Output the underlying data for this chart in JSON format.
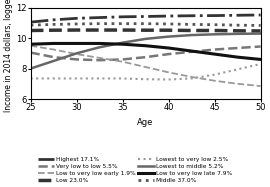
{
  "title": "",
  "xlabel": "Age",
  "ylabel": "Income in 2014 dollars, logged",
  "xlim": [
    25,
    50
  ],
  "ylim": [
    6,
    12
  ],
  "xticks": [
    25,
    30,
    35,
    40,
    45,
    50
  ],
  "yticks": [
    6,
    8,
    10,
    12
  ],
  "age": [
    25,
    27.5,
    30,
    32.5,
    35,
    37.5,
    40,
    42.5,
    45,
    47.5,
    50
  ],
  "series": [
    {
      "label": "Highest 17.1%",
      "color": "#333333",
      "linestyle": "dashdot",
      "linewidth": 2.0,
      "dash_capstyle": "butt",
      "values": [
        11.05,
        11.2,
        11.3,
        11.35,
        11.4,
        11.42,
        11.45,
        11.47,
        11.48,
        11.5,
        11.52
      ]
    },
    {
      "label": "Very low to low 5.5%",
      "color": "#777777",
      "linestyle": "dashed",
      "linewidth": 1.8,
      "values": [
        9.05,
        8.75,
        8.6,
        8.55,
        8.6,
        8.75,
        8.95,
        9.1,
        9.25,
        9.35,
        9.45
      ]
    },
    {
      "label": "Low to very low early 1.9%",
      "color": "#999999",
      "linestyle": "dashed",
      "linewidth": 1.3,
      "values": [
        9.5,
        9.25,
        8.95,
        8.7,
        8.45,
        8.1,
        7.75,
        7.45,
        7.2,
        7.0,
        6.85
      ]
    },
    {
      "label": "Low 23.0%",
      "color": "#333333",
      "linestyle": "dashed",
      "linewidth": 2.5,
      "values": [
        10.5,
        10.52,
        10.53,
        10.53,
        10.53,
        10.52,
        10.52,
        10.5,
        10.5,
        10.48,
        10.47
      ]
    },
    {
      "label": "Lowest to very low 2.5%",
      "color": "#999999",
      "linestyle": "dotted",
      "linewidth": 1.5,
      "values": [
        7.35,
        7.35,
        7.35,
        7.35,
        7.35,
        7.3,
        7.28,
        7.35,
        7.6,
        7.95,
        8.3
      ]
    },
    {
      "label": "Lowest to middle 5.2%",
      "color": "#666666",
      "linestyle": "solid",
      "linewidth": 1.8,
      "values": [
        8.0,
        8.5,
        9.0,
        9.4,
        9.7,
        9.95,
        10.1,
        10.2,
        10.25,
        10.28,
        10.3
      ]
    },
    {
      "label": "Low to very low late 7.9%",
      "color": "#111111",
      "linestyle": "solid",
      "linewidth": 2.2,
      "values": [
        9.6,
        9.65,
        9.65,
        9.65,
        9.6,
        9.5,
        9.35,
        9.15,
        8.95,
        8.75,
        8.6
      ]
    },
    {
      "label": "Middle 37.0%",
      "color": "#555555",
      "linestyle": "dotted",
      "linewidth": 2.0,
      "values": [
        10.85,
        10.9,
        10.93,
        10.95,
        10.95,
        10.95,
        10.93,
        10.9,
        10.88,
        10.85,
        10.83
      ]
    }
  ],
  "legend_col1": [
    {
      "label": "Highest 17.1%",
      "color": "#333333",
      "linestyle": "dashdot",
      "linewidth": 2.0
    },
    {
      "label": "Very low to low 5.5%",
      "color": "#777777",
      "linestyle": "dashed",
      "linewidth": 1.8
    },
    {
      "label": "Low to very low early 1.9%",
      "color": "#999999",
      "linestyle": "dashed",
      "linewidth": 1.3
    },
    {
      "label": "Low 23.0%",
      "color": "#333333",
      "linestyle": "dashed",
      "linewidth": 2.5
    }
  ],
  "legend_col2": [
    {
      "label": "Lowest to very low 2.5%",
      "color": "#999999",
      "linestyle": "dotted",
      "linewidth": 1.5
    },
    {
      "label": "Lowest to middle 5.2%",
      "color": "#666666",
      "linestyle": "solid",
      "linewidth": 1.8
    },
    {
      "label": "Low to very low late 7.9%",
      "color": "#111111",
      "linestyle": "solid",
      "linewidth": 2.2
    },
    {
      "label": "Middle 37.0%",
      "color": "#555555",
      "linestyle": "dotted",
      "linewidth": 2.0
    }
  ]
}
